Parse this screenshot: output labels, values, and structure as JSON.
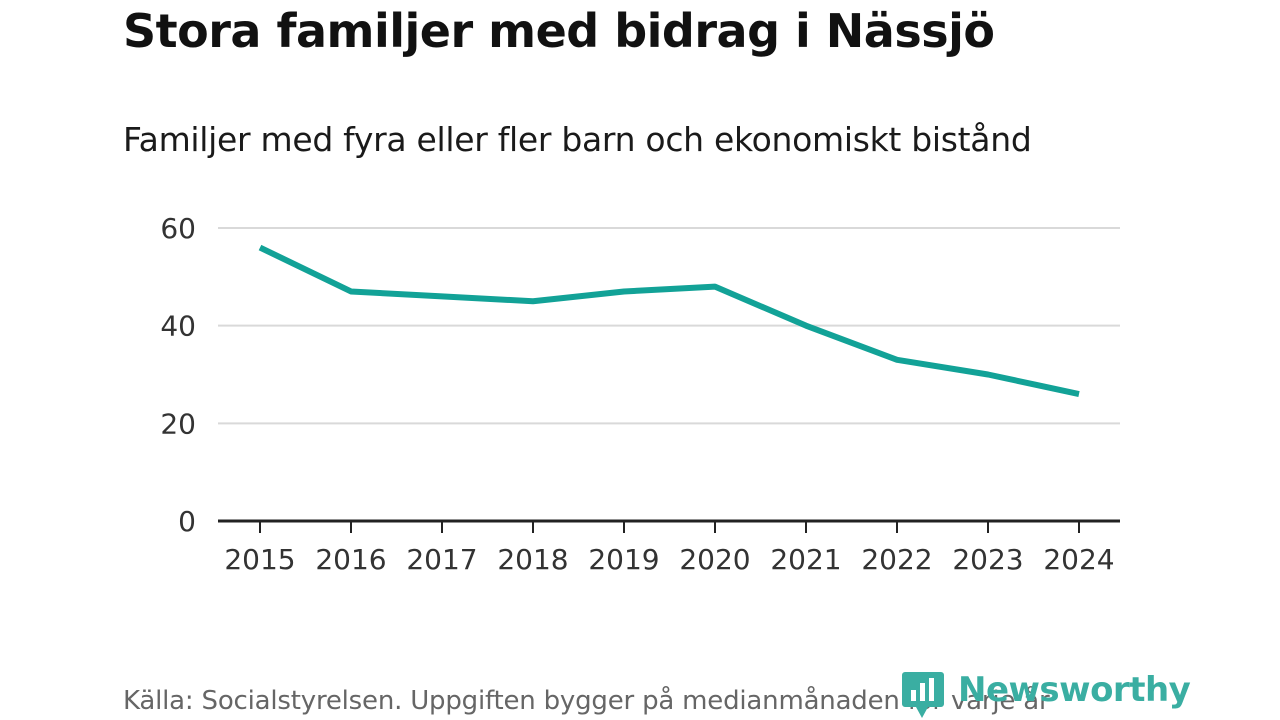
{
  "title": "Stora familjer med bidrag i Nässjö",
  "subtitle": "Familjer med fyra eller fler barn och ekonomiskt bistånd",
  "source": "Källa: Socialstyrelsen. Uppgiften bygger på medianmånaden för varje år",
  "brand": {
    "name": "Newsworthy",
    "color": "#3aaea2",
    "icon": "newsworthy-logo-icon"
  },
  "chart_data": {
    "type": "line",
    "title": "Familjer med fyra eller fler barn och ekonomiskt bistånd",
    "xlabel": "",
    "ylabel": "",
    "categories": [
      "2015",
      "2016",
      "2017",
      "2018",
      "2019",
      "2020",
      "2021",
      "2022",
      "2023",
      "2024"
    ],
    "series": [
      {
        "name": "Familjer",
        "color": "#12a297",
        "values": [
          56,
          47,
          46,
          45,
          47,
          48,
          40,
          33,
          30,
          26
        ]
      }
    ],
    "ylim": [
      0,
      60
    ],
    "yticks": [
      0,
      20,
      40,
      60
    ],
    "grid": true
  }
}
